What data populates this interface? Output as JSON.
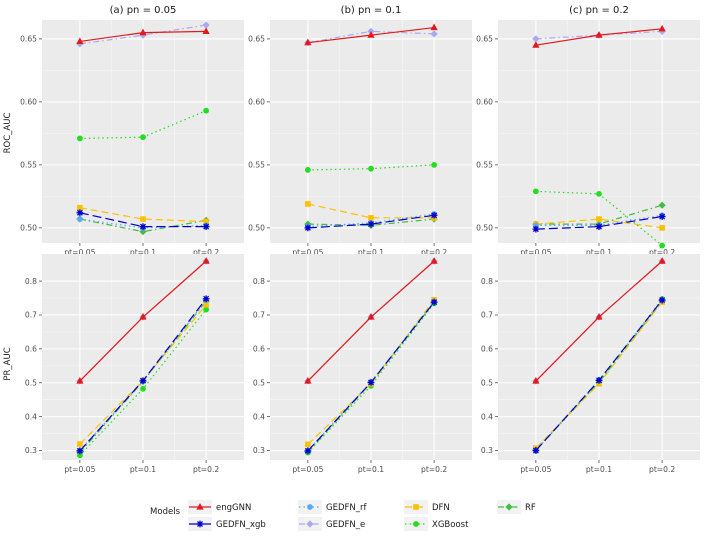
{
  "chart_data": {
    "type": "line",
    "layout": "2 rows x 3 columns faceted line chart",
    "columns": [
      "(a) pn = 0.05",
      "(b) pn = 0.1",
      "(c) pn = 0.2"
    ],
    "categories": [
      "pt=0.05",
      "pt=0.1",
      "pt=0.2"
    ],
    "series_info": [
      {
        "name": "engGNN",
        "color": "#e31a1c",
        "dash": "",
        "marker": "triangle"
      },
      {
        "name": "GEDFN_xgb",
        "color": "#0000cd",
        "dash": "9,4",
        "marker": "star"
      },
      {
        "name": "GEDFN_rf",
        "color": "#5aa9f5",
        "dash": "1.5,3",
        "marker": "circle"
      },
      {
        "name": "GEDFN_e",
        "color": "#a9a9f0",
        "dash": "6,3,1.5,3",
        "marker": "diamond"
      },
      {
        "name": "DFN",
        "color": "#ffc000",
        "dash": "7,4",
        "marker": "square"
      },
      {
        "name": "XGBoost",
        "color": "#22dd22",
        "dash": "1.5,3",
        "marker": "circle"
      },
      {
        "name": "RF",
        "color": "#44bb44",
        "dash": "6,3,1.5,3",
        "marker": "diamond"
      }
    ],
    "legend": {
      "title": "Models",
      "position": "bottom"
    },
    "rows": [
      {
        "ylabel": "ROC_AUC",
        "ylim": [
          0.488,
          0.665
        ],
        "yticks": [
          0.5,
          0.55,
          0.6,
          0.65
        ],
        "ytick_labels": [
          "0.50",
          "0.55",
          "0.60",
          "0.65"
        ],
        "panels": [
          {
            "series": [
              {
                "name": "engGNN",
                "values": [
                  0.648,
                  0.655,
                  0.656
                ]
              },
              {
                "name": "GEDFN_xgb",
                "values": [
                  0.512,
                  0.501,
                  0.501
                ]
              },
              {
                "name": "GEDFN_rf",
                "values": [
                  0.507,
                  0.5,
                  0.502
                ]
              },
              {
                "name": "GEDFN_e",
                "values": [
                  0.646,
                  0.653,
                  0.661
                ]
              },
              {
                "name": "DFN",
                "values": [
                  0.516,
                  0.507,
                  0.505
                ]
              },
              {
                "name": "XGBoost",
                "values": [
                  0.571,
                  0.572,
                  0.593
                ]
              },
              {
                "name": "RF",
                "values": [
                  0.507,
                  0.497,
                  0.506
                ]
              }
            ]
          },
          {
            "series": [
              {
                "name": "engGNN",
                "values": [
                  0.647,
                  0.653,
                  0.659
                ]
              },
              {
                "name": "GEDFN_xgb",
                "values": [
                  0.5,
                  0.503,
                  0.51
                ]
              },
              {
                "name": "GEDFN_rf",
                "values": [
                  0.501,
                  0.504,
                  0.511
                ]
              },
              {
                "name": "GEDFN_e",
                "values": [
                  0.647,
                  0.656,
                  0.654
                ]
              },
              {
                "name": "DFN",
                "values": [
                  0.519,
                  0.508,
                  0.508
                ]
              },
              {
                "name": "XGBoost",
                "values": [
                  0.546,
                  0.547,
                  0.55
                ]
              },
              {
                "name": "RF",
                "values": [
                  0.503,
                  0.502,
                  0.507
                ]
              }
            ]
          },
          {
            "series": [
              {
                "name": "engGNN",
                "values": [
                  0.645,
                  0.653,
                  0.658
                ]
              },
              {
                "name": "GEDFN_xgb",
                "values": [
                  0.499,
                  0.501,
                  0.509
                ]
              },
              {
                "name": "GEDFN_rf",
                "values": [
                  0.502,
                  0.502,
                  0.51
                ]
              },
              {
                "name": "GEDFN_e",
                "values": [
                  0.65,
                  0.653,
                  0.656
                ]
              },
              {
                "name": "DFN",
                "values": [
                  0.503,
                  0.507,
                  0.5
                ]
              },
              {
                "name": "XGBoost",
                "values": [
                  0.529,
                  0.527,
                  0.486
                ]
              },
              {
                "name": "RF",
                "values": [
                  0.503,
                  0.503,
                  0.518
                ]
              }
            ]
          }
        ]
      },
      {
        "ylabel": "PR_AUC",
        "ylim": [
          0.272,
          0.88
        ],
        "yticks": [
          0.3,
          0.4,
          0.5,
          0.6,
          0.7,
          0.8
        ],
        "ytick_labels": [
          "0.3",
          "0.4",
          "0.5",
          "0.6",
          "0.7",
          "0.8"
        ],
        "panels": [
          {
            "series": [
              {
                "name": "engGNN",
                "values": [
                  0.505,
                  0.694,
                  0.859
                ]
              },
              {
                "name": "GEDFN_xgb",
                "values": [
                  0.299,
                  0.506,
                  0.748
                ]
              },
              {
                "name": "GEDFN_rf",
                "values": [
                  0.3,
                  0.505,
                  0.744
                ]
              },
              {
                "name": "GEDFN_e",
                "values": [
                  0.505,
                  0.694,
                  0.859
                ]
              },
              {
                "name": "DFN",
                "values": [
                  0.319,
                  0.506,
                  0.73
                ]
              },
              {
                "name": "XGBoost",
                "values": [
                  0.286,
                  0.482,
                  0.716
                ]
              },
              {
                "name": "RF",
                "values": [
                  0.294,
                  0.504,
                  0.741
                ]
              }
            ]
          },
          {
            "series": [
              {
                "name": "engGNN",
                "values": [
                  0.505,
                  0.694,
                  0.859
                ]
              },
              {
                "name": "GEDFN_xgb",
                "values": [
                  0.299,
                  0.501,
                  0.738
                ]
              },
              {
                "name": "GEDFN_rf",
                "values": [
                  0.3,
                  0.502,
                  0.739
                ]
              },
              {
                "name": "GEDFN_e",
                "values": [
                  0.505,
                  0.694,
                  0.859
                ]
              },
              {
                "name": "DFN",
                "values": [
                  0.318,
                  0.497,
                  0.745
                ]
              },
              {
                "name": "XGBoost",
                "values": [
                  0.294,
                  0.491,
                  0.734
                ]
              },
              {
                "name": "RF",
                "values": [
                  0.296,
                  0.499,
                  0.737
                ]
              }
            ]
          },
          {
            "series": [
              {
                "name": "engGNN",
                "values": [
                  0.505,
                  0.694,
                  0.859
                ]
              },
              {
                "name": "GEDFN_xgb",
                "values": [
                  0.3,
                  0.507,
                  0.744
                ]
              },
              {
                "name": "GEDFN_rf",
                "values": [
                  0.301,
                  0.508,
                  0.743
                ]
              },
              {
                "name": "GEDFN_e",
                "values": [
                  0.505,
                  0.694,
                  0.859
                ]
              },
              {
                "name": "DFN",
                "values": [
                  0.307,
                  0.497,
                  0.738
                ]
              },
              {
                "name": "XGBoost",
                "values": [
                  0.3,
                  0.503,
                  0.747
                ]
              },
              {
                "name": "RF",
                "values": [
                  0.302,
                  0.501,
                  0.741
                ]
              }
            ]
          }
        ]
      }
    ]
  }
}
